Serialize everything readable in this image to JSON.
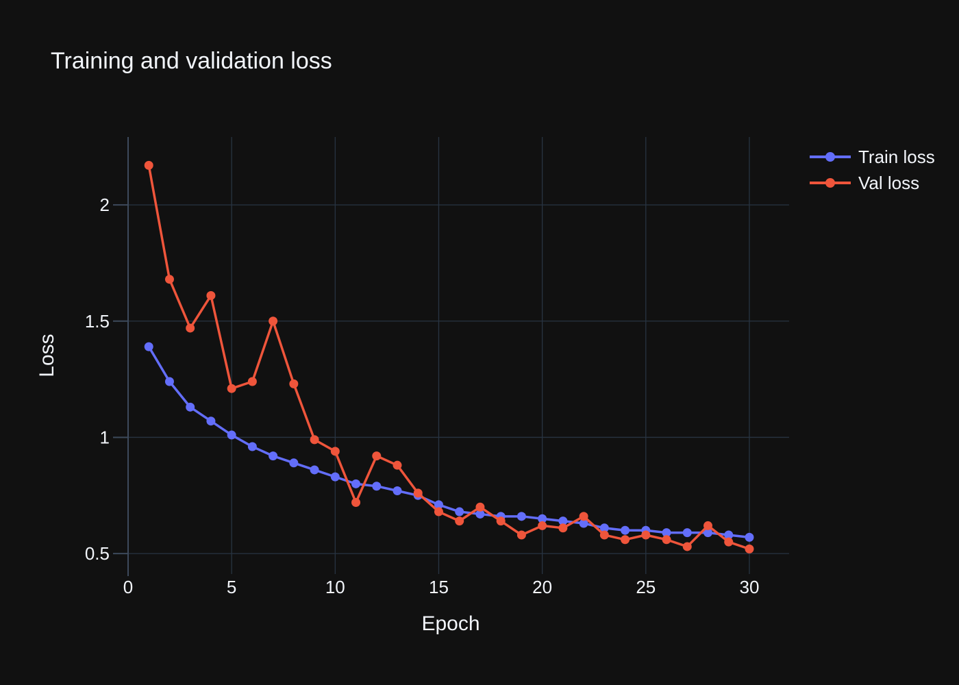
{
  "chart_data": {
    "type": "line",
    "title": "Training and validation loss",
    "xlabel": "Epoch",
    "ylabel": "Loss",
    "x": [
      1,
      2,
      3,
      4,
      5,
      6,
      7,
      8,
      9,
      10,
      11,
      12,
      13,
      14,
      15,
      16,
      17,
      18,
      19,
      20,
      21,
      22,
      23,
      24,
      25,
      26,
      27,
      28,
      29,
      30
    ],
    "series": [
      {
        "name": "Train loss",
        "color": "#636EFA",
        "values": [
          1.39,
          1.24,
          1.13,
          1.07,
          1.01,
          0.96,
          0.92,
          0.89,
          0.86,
          0.83,
          0.8,
          0.79,
          0.77,
          0.75,
          0.71,
          0.68,
          0.67,
          0.66,
          0.66,
          0.65,
          0.64,
          0.63,
          0.61,
          0.6,
          0.6,
          0.59,
          0.59,
          0.59,
          0.58,
          0.57
        ]
      },
      {
        "name": "Val loss",
        "color": "#EF553B",
        "values": [
          2.17,
          1.68,
          1.47,
          1.61,
          1.21,
          1.24,
          1.5,
          1.23,
          0.99,
          0.94,
          0.72,
          0.92,
          0.88,
          0.76,
          0.68,
          0.64,
          0.7,
          0.64,
          0.58,
          0.62,
          0.61,
          0.66,
          0.58,
          0.56,
          0.58,
          0.56,
          0.53,
          0.62,
          0.55,
          0.52
        ]
      }
    ],
    "xlim": [
      0,
      31.92
    ],
    "ylim": [
      0.412,
      2.292
    ],
    "xticks": [
      0,
      5,
      10,
      15,
      20,
      25,
      30
    ],
    "xtick_labels": [
      "0",
      "5",
      "10",
      "15",
      "20",
      "25",
      "30"
    ],
    "yticks": [
      0.5,
      1,
      1.5,
      2
    ],
    "ytick_labels": [
      "0.5",
      "1",
      "1.5",
      "2"
    ],
    "grid": true,
    "legend_position": "top-right-outside"
  },
  "colors": {
    "background": "#111111",
    "grid": "#283442",
    "axis_line": "#3d4a5c",
    "text": "#f2f5fa"
  }
}
